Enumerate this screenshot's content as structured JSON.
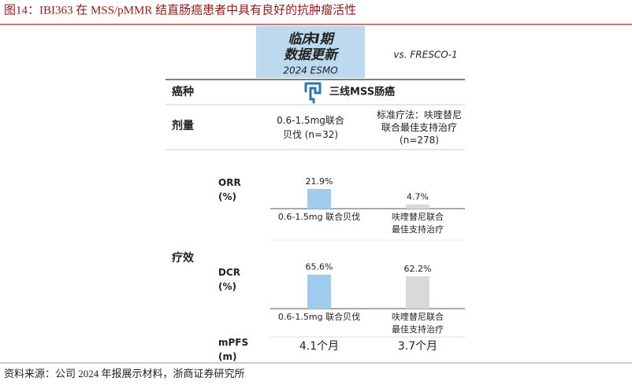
{
  "title": "图14：IBI363 在 MSS/pMMR 结直肠癌患者中具有良好的抗肿瘤活性",
  "source": "资料来源：公司 2024 年报展示材料，浙商证券研究所",
  "header": {
    "trial": "临床I期\n数据更新",
    "meeting": "2024 ESMO",
    "comparator": "vs. FRESCO-1"
  },
  "rows": {
    "cancer_type": {
      "label": "癌种",
      "value": "三线MSS肠癌"
    },
    "dose": {
      "label": "剂量",
      "arm1": "0.6-1.5mg联合\n贝伐 (n=32)",
      "arm2": "标准疗法：呋喹替尼\n联合最佳支持治疗\n(n=278)"
    },
    "efficacy": {
      "label": "疗效"
    }
  },
  "chart_data": [
    {
      "type": "bar",
      "y_label": "ORR\n(%)",
      "categories": [
        "0.6-1.5mg 联合贝伐",
        "呋喹替尼联合\n最佳支持治疗"
      ],
      "values": [
        21.9,
        4.7
      ],
      "value_labels": [
        "21.9%",
        "4.7%"
      ],
      "colors": [
        "#9fcbec",
        "#d9d9d9"
      ],
      "ylim": [
        0,
        50
      ]
    },
    {
      "type": "bar",
      "y_label": "DCR\n(%)",
      "categories": [
        "0.6-1.5mg 联合贝伐",
        "呋喹替尼联合\n最佳支持治疗"
      ],
      "values": [
        65.6,
        62.2
      ],
      "value_labels": [
        "65.6%",
        "62.2%"
      ],
      "colors": [
        "#9fcbec",
        "#d9d9d9"
      ],
      "ylim": [
        0,
        100
      ]
    }
  ],
  "mpfs": {
    "label": "mPFS\n(m)",
    "values": [
      "4.1个月",
      "3.7个月"
    ]
  }
}
